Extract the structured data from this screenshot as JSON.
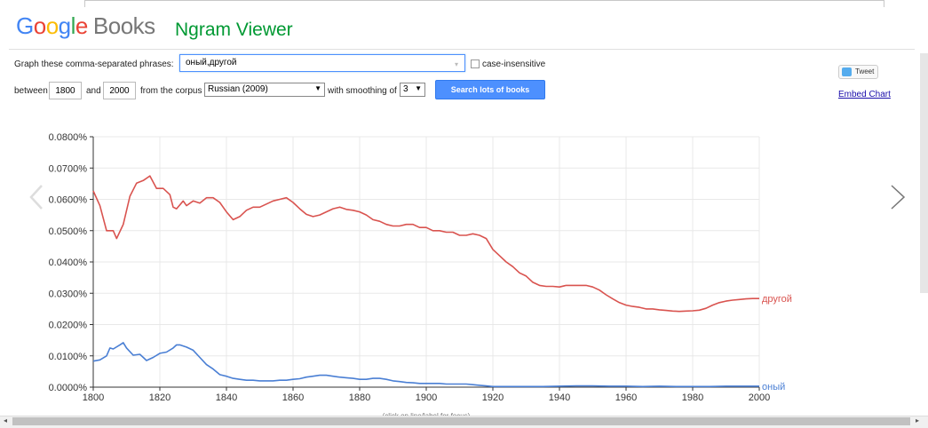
{
  "header": {
    "logo_letters": [
      "G",
      "o",
      "o",
      "g",
      "l",
      "e"
    ],
    "logo_books": "Books",
    "title": "Ngram Viewer"
  },
  "form": {
    "phrases_label": "Graph these comma-separated phrases:",
    "phrases_value": "оный,другой",
    "case_insensitive_label": "case-insensitive",
    "between_label": "between",
    "year_start": "1800",
    "and_label": "and",
    "year_end": "2000",
    "corpus_label": "from the corpus",
    "corpus_value": "Russian (2009)",
    "smoothing_label": "with smoothing of",
    "smoothing_value": "3",
    "search_button": "Search lots of books"
  },
  "side": {
    "tweet_label": "Tweet",
    "embed_label": "Embed Chart"
  },
  "chart_data": {
    "type": "line",
    "xlim": [
      1800,
      2000
    ],
    "ylim": [
      0,
      0.08
    ],
    "x_ticks": [
      "1800",
      "1820",
      "1840",
      "1860",
      "1880",
      "1900",
      "1920",
      "1940",
      "1960",
      "1980",
      "2000"
    ],
    "y_ticks": [
      "0.0000%",
      "0.0100%",
      "0.0200%",
      "0.0300%",
      "0.0400%",
      "0.0500%",
      "0.0600%",
      "0.0700%",
      "0.0800%"
    ],
    "grid": true,
    "footer_note": "(click on line/label for focus)",
    "series": [
      {
        "name": "другой",
        "color": "#d9534f",
        "points": [
          [
            1800,
            0.0627
          ],
          [
            1802,
            0.058
          ],
          [
            1804,
            0.05
          ],
          [
            1806,
            0.05
          ],
          [
            1807,
            0.0475
          ],
          [
            1809,
            0.052
          ],
          [
            1811,
            0.061
          ],
          [
            1813,
            0.0652
          ],
          [
            1815,
            0.066
          ],
          [
            1817,
            0.0675
          ],
          [
            1819,
            0.0635
          ],
          [
            1821,
            0.0635
          ],
          [
            1823,
            0.0615
          ],
          [
            1824,
            0.0575
          ],
          [
            1825,
            0.057
          ],
          [
            1827,
            0.0595
          ],
          [
            1828,
            0.058
          ],
          [
            1830,
            0.0595
          ],
          [
            1832,
            0.0588
          ],
          [
            1834,
            0.0605
          ],
          [
            1836,
            0.0605
          ],
          [
            1838,
            0.059
          ],
          [
            1840,
            0.056
          ],
          [
            1842,
            0.0535
          ],
          [
            1844,
            0.0545
          ],
          [
            1846,
            0.0565
          ],
          [
            1848,
            0.0575
          ],
          [
            1850,
            0.0575
          ],
          [
            1852,
            0.0585
          ],
          [
            1854,
            0.0595
          ],
          [
            1856,
            0.06
          ],
          [
            1858,
            0.0605
          ],
          [
            1860,
            0.059
          ],
          [
            1862,
            0.057
          ],
          [
            1864,
            0.0552
          ],
          [
            1866,
            0.0545
          ],
          [
            1868,
            0.055
          ],
          [
            1870,
            0.056
          ],
          [
            1872,
            0.057
          ],
          [
            1874,
            0.0575
          ],
          [
            1876,
            0.0568
          ],
          [
            1878,
            0.0565
          ],
          [
            1880,
            0.056
          ],
          [
            1882,
            0.055
          ],
          [
            1884,
            0.0535
          ],
          [
            1886,
            0.053
          ],
          [
            1888,
            0.052
          ],
          [
            1890,
            0.0515
          ],
          [
            1892,
            0.0515
          ],
          [
            1894,
            0.052
          ],
          [
            1896,
            0.052
          ],
          [
            1898,
            0.051
          ],
          [
            1900,
            0.051
          ],
          [
            1902,
            0.05
          ],
          [
            1904,
            0.05
          ],
          [
            1906,
            0.0495
          ],
          [
            1908,
            0.0495
          ],
          [
            1910,
            0.0485
          ],
          [
            1912,
            0.0485
          ],
          [
            1914,
            0.049
          ],
          [
            1916,
            0.0485
          ],
          [
            1918,
            0.0475
          ],
          [
            1920,
            0.044
          ],
          [
            1922,
            0.042
          ],
          [
            1924,
            0.04
          ],
          [
            1926,
            0.0385
          ],
          [
            1928,
            0.0365
          ],
          [
            1930,
            0.0355
          ],
          [
            1932,
            0.0335
          ],
          [
            1934,
            0.0325
          ],
          [
            1936,
            0.0322
          ],
          [
            1938,
            0.0322
          ],
          [
            1940,
            0.032
          ],
          [
            1942,
            0.0325
          ],
          [
            1944,
            0.0325
          ],
          [
            1946,
            0.0325
          ],
          [
            1948,
            0.0325
          ],
          [
            1950,
            0.032
          ],
          [
            1952,
            0.031
          ],
          [
            1954,
            0.0295
          ],
          [
            1956,
            0.0282
          ],
          [
            1958,
            0.027
          ],
          [
            1960,
            0.0262
          ],
          [
            1962,
            0.0258
          ],
          [
            1964,
            0.0255
          ],
          [
            1966,
            0.025
          ],
          [
            1968,
            0.025
          ],
          [
            1970,
            0.0247
          ],
          [
            1972,
            0.0245
          ],
          [
            1974,
            0.0243
          ],
          [
            1976,
            0.0242
          ],
          [
            1978,
            0.0243
          ],
          [
            1980,
            0.0244
          ],
          [
            1982,
            0.0246
          ],
          [
            1984,
            0.0252
          ],
          [
            1986,
            0.0262
          ],
          [
            1988,
            0.027
          ],
          [
            1990,
            0.0275
          ],
          [
            1992,
            0.0278
          ],
          [
            1994,
            0.028
          ],
          [
            1996,
            0.0282
          ],
          [
            1998,
            0.0283
          ],
          [
            2000,
            0.0283
          ]
        ]
      },
      {
        "name": "оный",
        "color": "#4a7fd4",
        "points": [
          [
            1800,
            0.0083
          ],
          [
            1802,
            0.0087
          ],
          [
            1804,
            0.01
          ],
          [
            1805,
            0.0125
          ],
          [
            1806,
            0.0122
          ],
          [
            1808,
            0.0135
          ],
          [
            1809,
            0.0142
          ],
          [
            1810,
            0.0125
          ],
          [
            1812,
            0.0102
          ],
          [
            1814,
            0.0105
          ],
          [
            1815,
            0.0095
          ],
          [
            1816,
            0.0085
          ],
          [
            1818,
            0.0095
          ],
          [
            1820,
            0.0108
          ],
          [
            1822,
            0.0112
          ],
          [
            1824,
            0.0125
          ],
          [
            1825,
            0.0135
          ],
          [
            1826,
            0.0135
          ],
          [
            1828,
            0.0128
          ],
          [
            1830,
            0.0118
          ],
          [
            1832,
            0.0095
          ],
          [
            1834,
            0.0072
          ],
          [
            1836,
            0.0058
          ],
          [
            1838,
            0.004
          ],
          [
            1840,
            0.0035
          ],
          [
            1842,
            0.0028
          ],
          [
            1844,
            0.0025
          ],
          [
            1846,
            0.0022
          ],
          [
            1848,
            0.0022
          ],
          [
            1850,
            0.002
          ],
          [
            1852,
            0.002
          ],
          [
            1854,
            0.002
          ],
          [
            1856,
            0.0022
          ],
          [
            1858,
            0.0022
          ],
          [
            1860,
            0.0025
          ],
          [
            1862,
            0.0027
          ],
          [
            1864,
            0.0032
          ],
          [
            1866,
            0.0035
          ],
          [
            1868,
            0.0038
          ],
          [
            1870,
            0.0038
          ],
          [
            1872,
            0.0035
          ],
          [
            1874,
            0.0032
          ],
          [
            1876,
            0.003
          ],
          [
            1878,
            0.0028
          ],
          [
            1880,
            0.0025
          ],
          [
            1882,
            0.0025
          ],
          [
            1884,
            0.0028
          ],
          [
            1886,
            0.0028
          ],
          [
            1888,
            0.0025
          ],
          [
            1890,
            0.002
          ],
          [
            1892,
            0.0018
          ],
          [
            1894,
            0.0015
          ],
          [
            1896,
            0.0014
          ],
          [
            1898,
            0.0012
          ],
          [
            1900,
            0.0012
          ],
          [
            1902,
            0.0012
          ],
          [
            1904,
            0.0012
          ],
          [
            1906,
            0.001
          ],
          [
            1908,
            0.001
          ],
          [
            1910,
            0.001
          ],
          [
            1912,
            0.001
          ],
          [
            1914,
            0.0008
          ],
          [
            1916,
            0.0006
          ],
          [
            1918,
            0.0004
          ],
          [
            1920,
            0.0002
          ],
          [
            1925,
            0.0002
          ],
          [
            1930,
            0.0002
          ],
          [
            1935,
            0.0002
          ],
          [
            1940,
            0.0003
          ],
          [
            1945,
            0.0004
          ],
          [
            1950,
            0.0004
          ],
          [
            1955,
            0.0003
          ],
          [
            1960,
            0.0003
          ],
          [
            1965,
            0.0002
          ],
          [
            1970,
            0.0003
          ],
          [
            1975,
            0.0002
          ],
          [
            1980,
            0.0002
          ],
          [
            1985,
            0.0002
          ],
          [
            1990,
            0.0003
          ],
          [
            1995,
            0.0003
          ],
          [
            2000,
            0.0003
          ]
        ]
      }
    ]
  }
}
